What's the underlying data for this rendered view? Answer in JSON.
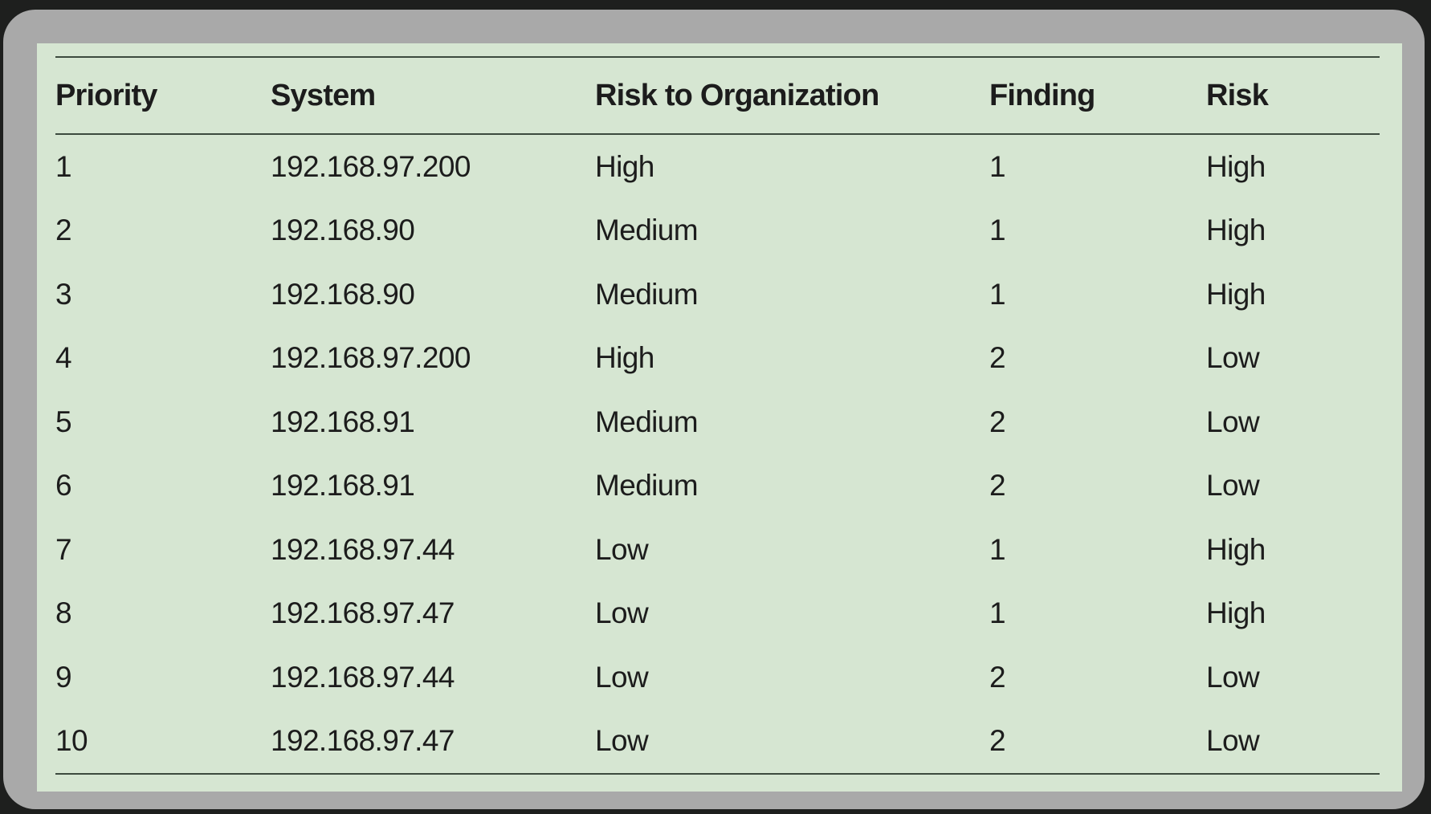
{
  "table": {
    "columns": [
      "Priority",
      "System",
      "Risk to Organization",
      "Finding",
      "Risk"
    ],
    "rows": [
      [
        "1",
        "192.168.97.200",
        "High",
        "1",
        "High"
      ],
      [
        "2",
        "192.168.90",
        "Medium",
        "1",
        "High"
      ],
      [
        "3",
        "192.168.90",
        "Medium",
        "1",
        "High"
      ],
      [
        "4",
        "192.168.97.200",
        "High",
        "2",
        "Low"
      ],
      [
        "5",
        "192.168.91",
        "Medium",
        "2",
        "Low"
      ],
      [
        "6",
        "192.168.91",
        "Medium",
        "2",
        "Low"
      ],
      [
        "7",
        "192.168.97.44",
        "Low",
        "1",
        "High"
      ],
      [
        "8",
        "192.168.97.47",
        "Low",
        "1",
        "High"
      ],
      [
        "9",
        "192.168.97.44",
        "Low",
        "2",
        "Low"
      ],
      [
        "10",
        "192.168.97.47",
        "Low",
        "2",
        "Low"
      ]
    ]
  },
  "colors": {
    "panel_background": "#d6e6d2",
    "frame": "#a9a9a9",
    "outer_background": "#1e1f1e",
    "rule_lines": "#3c4a3e",
    "text": "#1c1c1c"
  }
}
